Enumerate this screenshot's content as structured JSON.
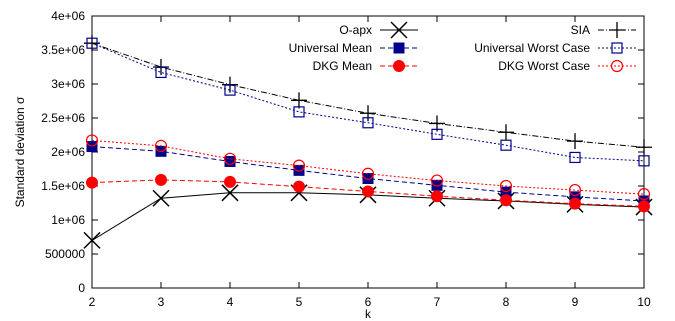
{
  "chart_data": {
    "type": "line",
    "title": "",
    "xlabel": "k",
    "ylabel": "Standard deviation σ",
    "x": [
      2,
      3,
      4,
      5,
      6,
      7,
      8,
      9,
      10
    ],
    "xlim": [
      2,
      10
    ],
    "ylim": [
      0,
      4000000
    ],
    "yticks": [
      0,
      500000,
      1000000,
      1500000,
      2000000,
      2500000,
      3000000,
      3500000,
      4000000
    ],
    "ytick_labels": [
      "0",
      "500000",
      "1e+06",
      "1.5e+06",
      "2e+06",
      "2.5e+06",
      "3e+06",
      "3.5e+06",
      "4e+06"
    ],
    "xticks": [
      2,
      3,
      4,
      5,
      6,
      7,
      8,
      9,
      10
    ],
    "xtick_labels": [
      "2",
      "3",
      "4",
      "5",
      "6",
      "7",
      "8",
      "9",
      "10"
    ],
    "grid": false,
    "legend_placement": "top",
    "series": [
      {
        "name": "O-apx",
        "color": "#000000",
        "dash": "solid",
        "marker": "x",
        "values": [
          700000,
          1320000,
          1400000,
          1400000,
          1370000,
          1320000,
          1280000,
          1230000,
          1190000
        ]
      },
      {
        "name": "SIA",
        "color": "#000000",
        "dash": "dashdot",
        "marker": "plus",
        "values": [
          3600000,
          3250000,
          2990000,
          2760000,
          2570000,
          2420000,
          2290000,
          2160000,
          2070000
        ]
      },
      {
        "name": "Universal Mean",
        "color": "#00008b",
        "dash": "dashed",
        "marker": "filled-square",
        "values": [
          2080000,
          2010000,
          1860000,
          1730000,
          1610000,
          1510000,
          1410000,
          1340000,
          1280000
        ]
      },
      {
        "name": "Universal Worst Case",
        "color": "#00008b",
        "dash": "dotted",
        "marker": "open-square",
        "values": [
          3600000,
          3170000,
          2910000,
          2590000,
          2430000,
          2260000,
          2100000,
          1920000,
          1870000
        ]
      },
      {
        "name": "DKG Mean",
        "color": "#ff0000",
        "dash": "dashed",
        "marker": "filled-circle",
        "values": [
          1550000,
          1590000,
          1560000,
          1490000,
          1420000,
          1350000,
          1290000,
          1240000,
          1200000
        ]
      },
      {
        "name": "DKG Worst Case",
        "color": "#ff0000",
        "dash": "dotted",
        "marker": "open-circle",
        "values": [
          2170000,
          2090000,
          1900000,
          1800000,
          1680000,
          1580000,
          1500000,
          1440000,
          1380000
        ]
      }
    ]
  }
}
